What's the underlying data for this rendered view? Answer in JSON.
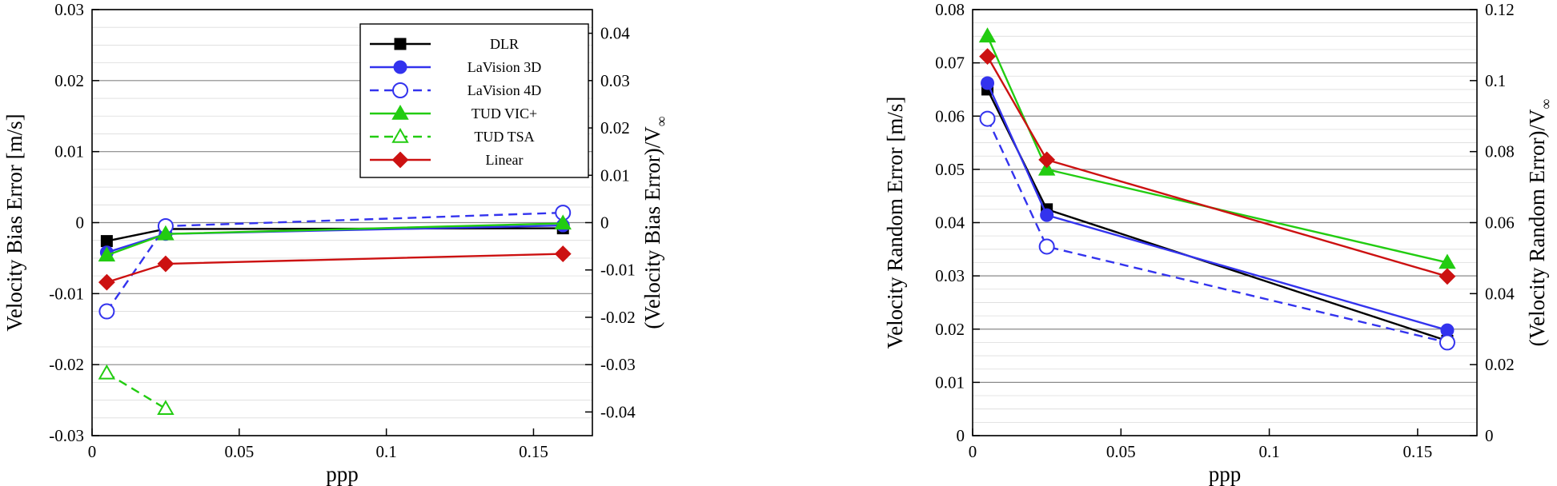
{
  "chart_data": [
    {
      "type": "line",
      "xlabel": "ppp",
      "ylabel": "Velocity Bias Error [m/s]",
      "y2label": "(Velocity Bias Error)/V",
      "y2label_subscript": "∞",
      "xlim": [
        0,
        0.17
      ],
      "ylim": [
        -0.03,
        0.03
      ],
      "y2lim": [
        -0.045,
        0.045
      ],
      "x_ticks": [
        "0",
        "0.05",
        "0.1",
        "0.15"
      ],
      "y_ticks": [
        "-0.03",
        "-0.02",
        "-0.01",
        "0",
        "0.01",
        "0.02",
        "0.03"
      ],
      "y2_ticks": [
        "-0.04",
        "-0.03",
        "-0.02",
        "-0.01",
        "0",
        "0.01",
        "0.02",
        "0.03",
        "0.04"
      ],
      "grid": true,
      "legend": "top-right",
      "series": [
        {
          "name": "DLR",
          "color": "#000000",
          "marker": "square",
          "filled": true,
          "dashed": false,
          "x": [
            0.005,
            0.025,
            0.16
          ],
          "y": [
            -0.0026,
            -0.0009,
            -0.0008
          ]
        },
        {
          "name": "LaVision 3D",
          "color": "#3333ee",
          "marker": "circle",
          "filled": true,
          "dashed": false,
          "x": [
            0.005,
            0.025,
            0.16
          ],
          "y": [
            -0.0042,
            -0.0016,
            -0.0004
          ]
        },
        {
          "name": "LaVision 4D",
          "color": "#3333ee",
          "marker": "circle",
          "filled": false,
          "dashed": true,
          "x": [
            0.005,
            0.025,
            0.16
          ],
          "y": [
            -0.0125,
            -0.0005,
            0.0014
          ]
        },
        {
          "name": "TUD VIC+",
          "color": "#22cc11",
          "marker": "triangle",
          "filled": true,
          "dashed": false,
          "x": [
            0.005,
            0.025,
            0.16
          ],
          "y": [
            -0.0046,
            -0.0016,
            -0.0001
          ]
        },
        {
          "name": "TUD TSA",
          "color": "#22cc11",
          "marker": "triangle",
          "filled": false,
          "dashed": true,
          "x": [
            0.005,
            0.025
          ],
          "y": [
            -0.0212,
            -0.0262
          ]
        },
        {
          "name": "Linear",
          "color": "#cc1111",
          "marker": "diamond",
          "filled": true,
          "dashed": false,
          "x": [
            0.005,
            0.025,
            0.16
          ],
          "y": [
            -0.0084,
            -0.0058,
            -0.0044
          ]
        }
      ]
    },
    {
      "type": "line",
      "xlabel": "ppp",
      "ylabel": "Velocity Random Error [m/s]",
      "y2label": "(Velocity Random Error)/V",
      "y2label_subscript": "∞",
      "xlim": [
        0,
        0.17
      ],
      "ylim": [
        0,
        0.08
      ],
      "y2lim": [
        0,
        0.12
      ],
      "x_ticks": [
        "0",
        "0.05",
        "0.1",
        "0.15"
      ],
      "y_ticks": [
        "0",
        "0.01",
        "0.02",
        "0.03",
        "0.04",
        "0.05",
        "0.06",
        "0.07",
        "0.08"
      ],
      "y2_ticks": [
        "0",
        "0.02",
        "0.04",
        "0.06",
        "0.08",
        "0.1",
        "0.12"
      ],
      "grid": true,
      "series": [
        {
          "name": "DLR",
          "color": "#000000",
          "marker": "square",
          "filled": true,
          "dashed": false,
          "x": [
            0.005,
            0.025,
            0.16
          ],
          "y": [
            0.065,
            0.0425,
            0.0178
          ]
        },
        {
          "name": "LaVision 3D",
          "color": "#3333ee",
          "marker": "circle",
          "filled": true,
          "dashed": false,
          "x": [
            0.005,
            0.025,
            0.16
          ],
          "y": [
            0.0662,
            0.0414,
            0.0198
          ]
        },
        {
          "name": "LaVision 4D",
          "color": "#3333ee",
          "marker": "circle",
          "filled": false,
          "dashed": true,
          "x": [
            0.005,
            0.025,
            0.16
          ],
          "y": [
            0.0595,
            0.0355,
            0.0175
          ]
        },
        {
          "name": "TUD VIC+",
          "color": "#22cc11",
          "marker": "triangle",
          "filled": true,
          "dashed": false,
          "x": [
            0.005,
            0.025,
            0.16
          ],
          "y": [
            0.075,
            0.05,
            0.0325
          ]
        },
        {
          "name": "Linear",
          "color": "#cc1111",
          "marker": "diamond",
          "filled": true,
          "dashed": false,
          "x": [
            0.005,
            0.025,
            0.16
          ],
          "y": [
            0.0712,
            0.0518,
            0.0299
          ]
        }
      ]
    }
  ]
}
